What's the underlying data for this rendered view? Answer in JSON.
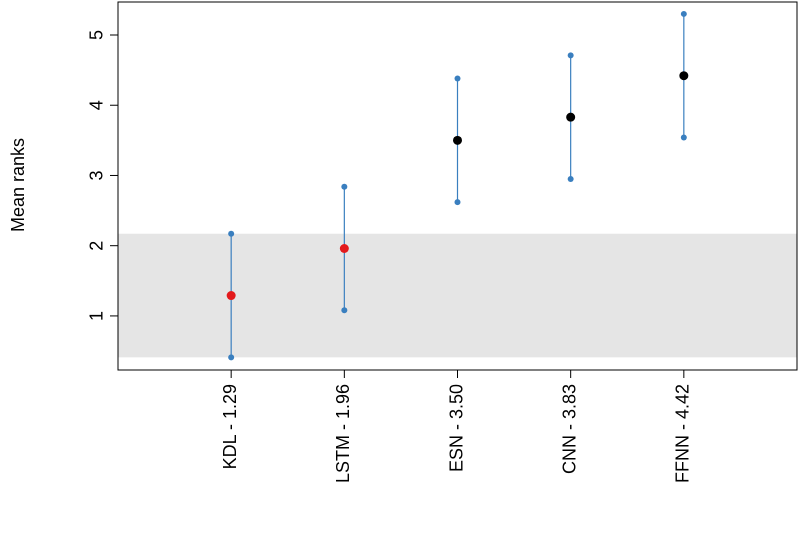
{
  "chart_data": {
    "type": "interval",
    "ylabel": "Mean ranks",
    "categories": [
      "KDL - 1.29",
      "LSTM - 1.96",
      "ESN - 3.50",
      "CNN - 3.83",
      "FFNN - 4.42"
    ],
    "values": [
      1.29,
      1.96,
      3.5,
      3.83,
      4.42
    ],
    "lower": [
      0.41,
      1.08,
      2.62,
      2.95,
      3.54
    ],
    "upper": [
      2.17,
      2.84,
      4.38,
      4.71,
      5.3
    ],
    "point_colors": [
      "#e31a1c",
      "#e31a1c",
      "#000000",
      "#000000",
      "#000000"
    ],
    "interval_color": "#3a7fbf",
    "band": [
      0.41,
      2.17
    ],
    "band_color": "#e5e5e5",
    "ylim": [
      0.23,
      5.47
    ],
    "yticks": [
      1,
      2,
      3,
      4,
      5
    ]
  }
}
